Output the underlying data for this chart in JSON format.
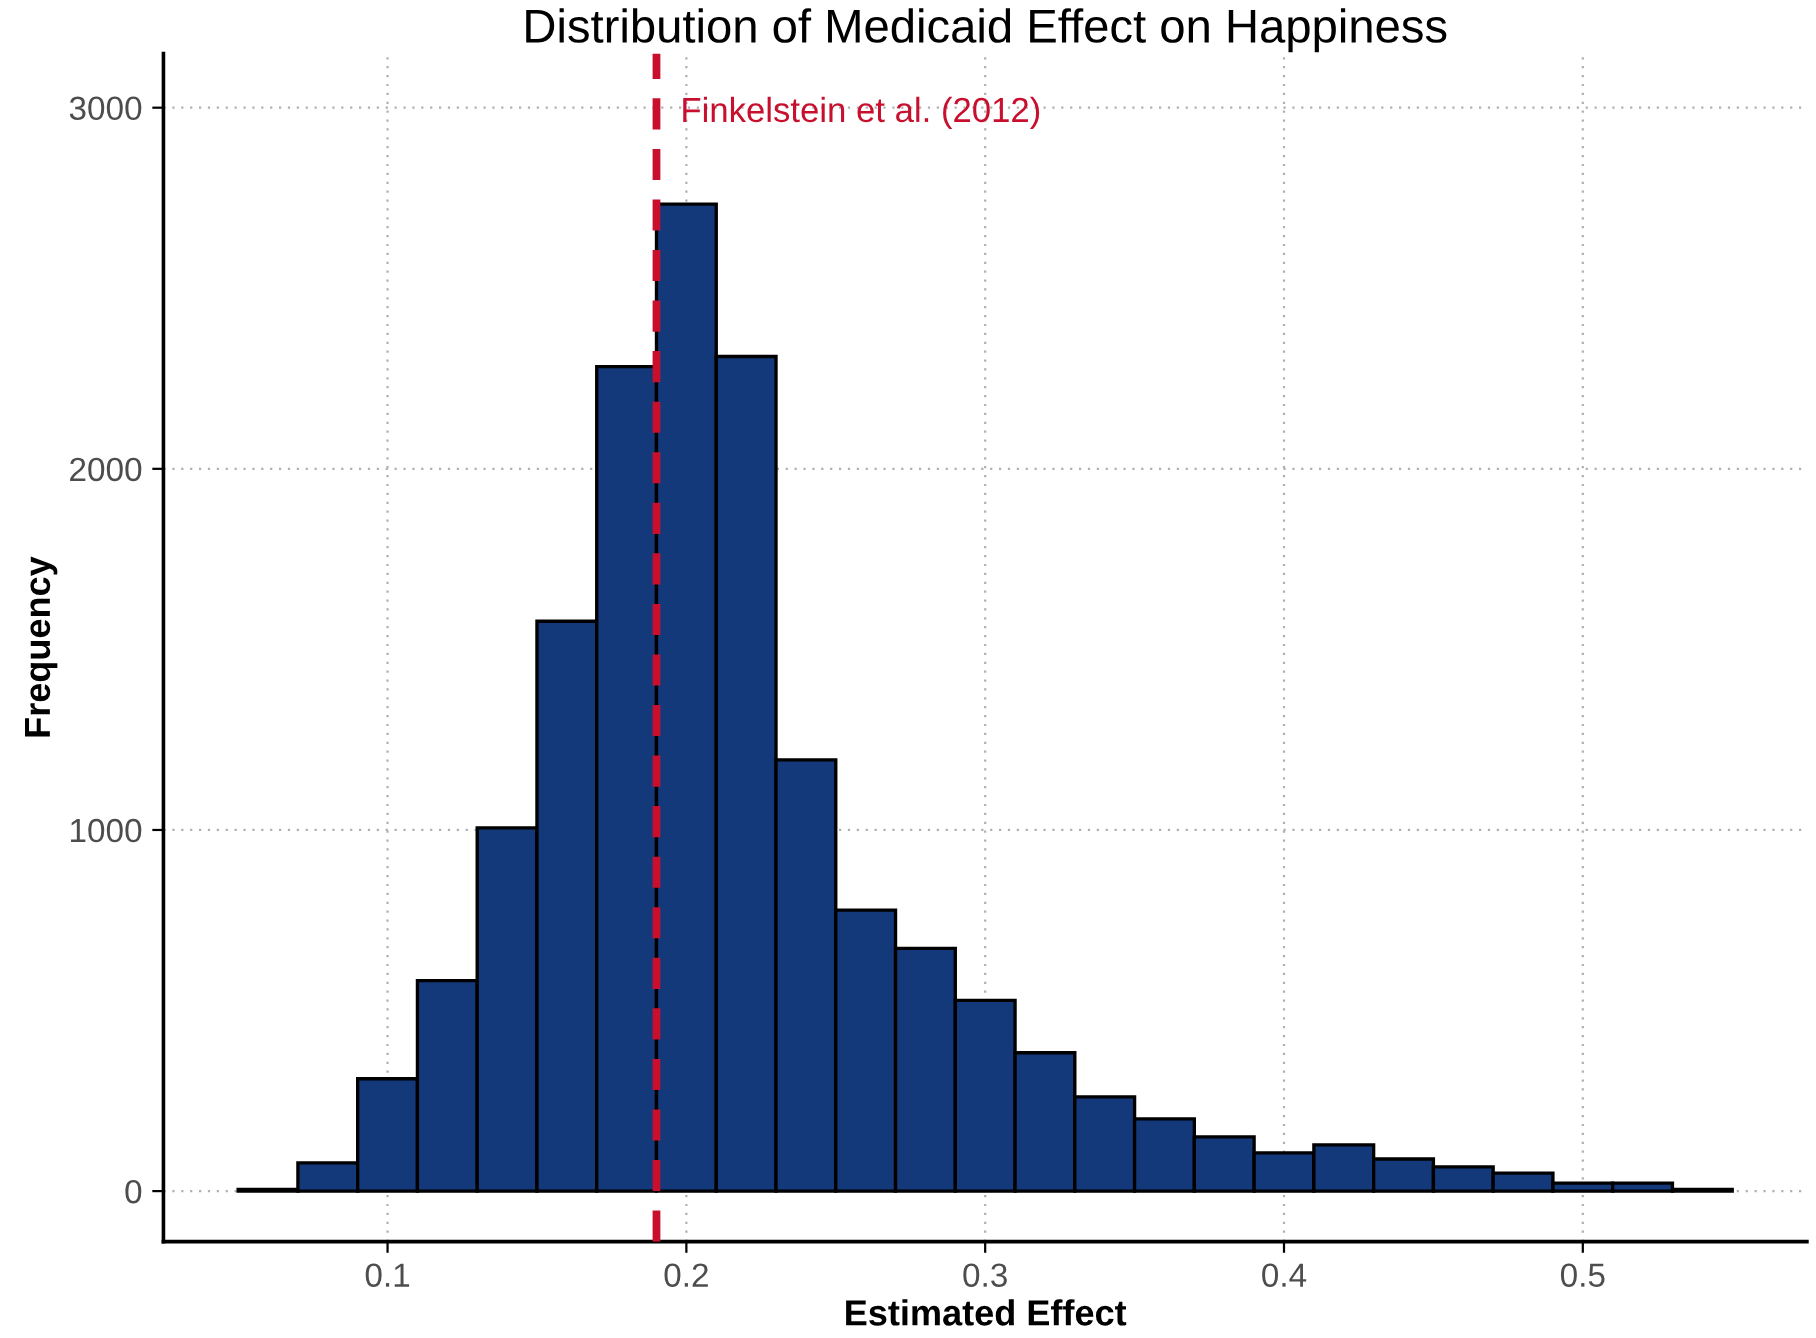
{
  "chart_data": {
    "type": "histogram",
    "title": "Distribution of Medicaid Effect on Happiness",
    "xlabel": "Estimated Effect",
    "ylabel": "Frequency",
    "bins": [
      0.05,
      0.07,
      0.09,
      0.11,
      0.13,
      0.15,
      0.17,
      0.19,
      0.21,
      0.23,
      0.25,
      0.27,
      0.29,
      0.31,
      0.33,
      0.35,
      0.37,
      0.39,
      0.41,
      0.43,
      0.45,
      0.47,
      0.49,
      0.51,
      0.53,
      0.55
    ],
    "values": [
      5,
      78,
      311,
      583,
      1006,
      1578,
      2283,
      2733,
      2311,
      1194,
      778,
      672,
      528,
      383,
      261,
      200,
      150,
      106,
      128,
      89,
      67,
      50,
      22,
      22,
      5
    ],
    "color": "#14397a",
    "xlim": [
      0.025,
      0.575
    ],
    "xticks": [
      0.1,
      0.2,
      0.3,
      0.4,
      0.5
    ],
    "ylim": [
      -140,
      3150
    ],
    "yticks": [
      0,
      1000,
      2000,
      3000
    ],
    "grid": true,
    "ref_lines": [
      {
        "axis": "x",
        "value": 0.19,
        "label": "Finkelstein et al. (2012)",
        "color": "#c8102e",
        "line_style": "dashed"
      }
    ]
  }
}
